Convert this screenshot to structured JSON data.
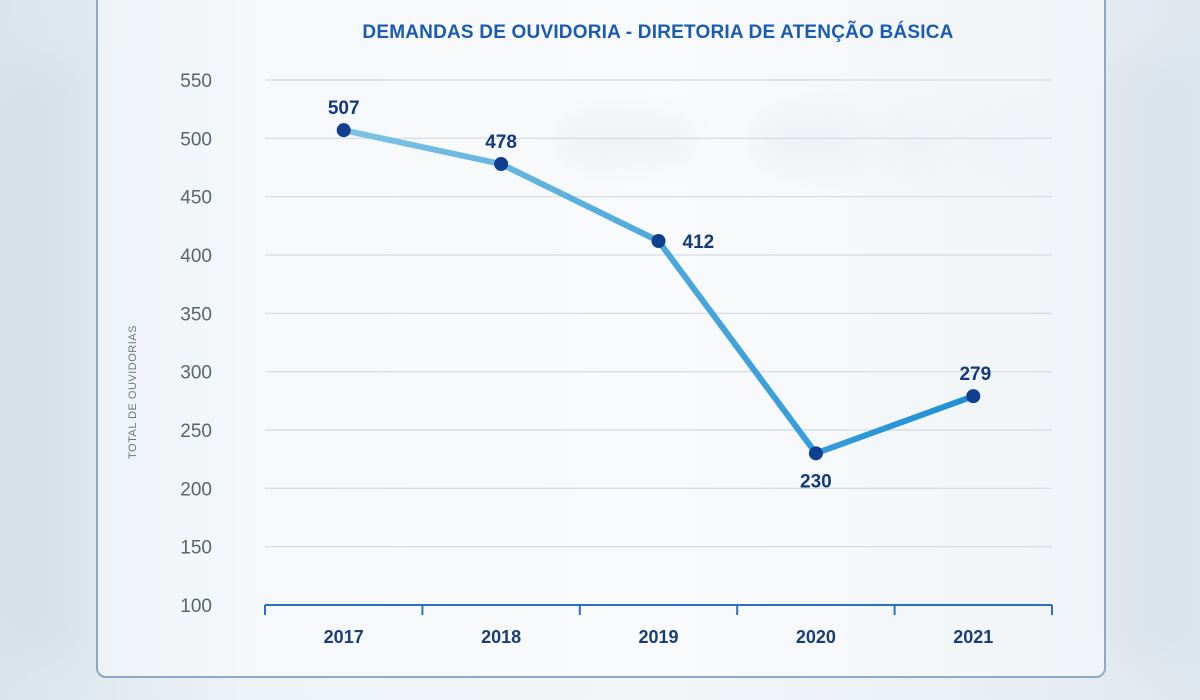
{
  "chart_data": {
    "type": "line",
    "title": "DEMANDAS DE OUVIDORIA - DIRETORIA DE ATENÇÃO BÁSICA",
    "xlabel": "",
    "ylabel": "TOTAL DE OUVIDORIAS",
    "categories": [
      "2017",
      "2018",
      "2019",
      "2020",
      "2021"
    ],
    "series": [
      {
        "values": [
          507,
          478,
          412,
          230,
          279
        ],
        "data_labels": [
          "507",
          "478",
          "412",
          "230",
          "279"
        ]
      }
    ],
    "ylim": [
      100,
      550
    ],
    "yticks": [
      100,
      150,
      200,
      250,
      300,
      350,
      400,
      450,
      500,
      550
    ],
    "grid": true,
    "legend": "none",
    "colors": {
      "line_start": "#7ec3e3",
      "line_end": "#1e8fd4",
      "marker": "#0f3f8f",
      "title": "#1b5bb0",
      "axis": "#2a6fc0",
      "grid": "#d4d9de"
    }
  }
}
